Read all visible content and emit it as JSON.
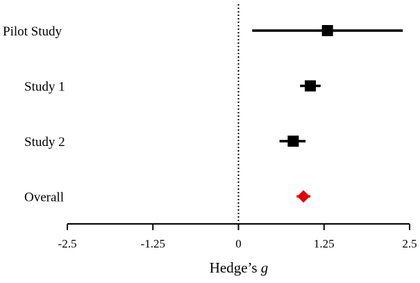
{
  "chart_data": {
    "type": "forest",
    "xlabel_prefix": "Hedge’s ",
    "xlabel_italic": "g",
    "xlim": [
      -2.5,
      2.5
    ],
    "ticks": [
      {
        "value": -2.5,
        "label": "-2.5"
      },
      {
        "value": -1.25,
        "label": "-1.25"
      },
      {
        "value": 0,
        "label": "0"
      },
      {
        "value": 1.25,
        "label": "1.25"
      },
      {
        "value": 2.5,
        "label": "2.5"
      }
    ],
    "reference_line": 0,
    "studies": [
      {
        "label": "Pilot Study",
        "estimate": 1.3,
        "ci_low": 0.2,
        "ci_high": 2.4,
        "marker": "square",
        "color": "#000000"
      },
      {
        "label": "Study 1",
        "estimate": 1.05,
        "ci_low": 0.9,
        "ci_high": 1.2,
        "marker": "square",
        "color": "#000000"
      },
      {
        "label": "Study 2",
        "estimate": 0.8,
        "ci_low": 0.6,
        "ci_high": 0.98,
        "marker": "square",
        "color": "#000000"
      },
      {
        "label": "Overall",
        "estimate": 0.95,
        "ci_low": 0.85,
        "ci_high": 1.05,
        "marker": "diamond",
        "color": "#e00000"
      }
    ]
  }
}
